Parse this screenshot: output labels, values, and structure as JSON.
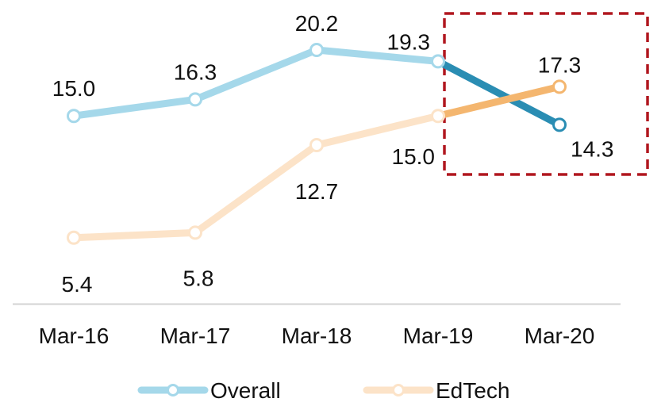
{
  "chart_data": {
    "type": "line",
    "categories": [
      "Mar-16",
      "Mar-17",
      "Mar-18",
      "Mar-19",
      "Mar-20"
    ],
    "series": [
      {
        "name": "Overall",
        "values": [
          15.0,
          16.3,
          20.2,
          19.3,
          14.3
        ],
        "labels": [
          "15.0",
          "16.3",
          "20.2",
          "19.3",
          "14.3"
        ],
        "color": "#a5d8ea",
        "highlight_color": "#2a8db3"
      },
      {
        "name": "EdTech",
        "values": [
          5.4,
          5.8,
          12.7,
          15.0,
          17.3
        ],
        "labels": [
          "5.4",
          "5.8",
          "12.7",
          "15.0",
          "17.3"
        ],
        "color": "#fce3c8",
        "highlight_color": "#f4b66f"
      }
    ],
    "ylim": [
      0,
      24
    ],
    "grid": false,
    "legend": "bottom",
    "highlight": {
      "from_category": "Mar-19",
      "to_category": "Mar-20",
      "box_color": "#b0171f",
      "style": "dashed"
    },
    "axis_color": "#d3d3d3"
  }
}
